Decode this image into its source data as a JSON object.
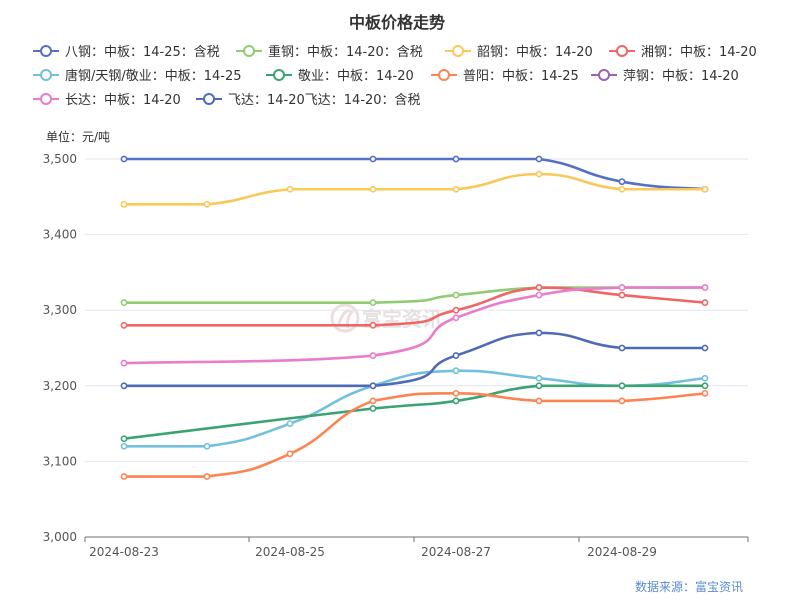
{
  "chart_data": {
    "type": "line",
    "title": "中板价格走势",
    "unit_label": "单位：元/吨",
    "source": "数据来源：富宝资讯",
    "watermark": "富宝资讯",
    "x_ticks": [
      "2024-08-23",
      "2024-08-25",
      "2024-08-27",
      "2024-08-29"
    ],
    "x": [
      "2024-08-23",
      "2024-08-24",
      "2024-08-25",
      "2024-08-26",
      "2024-08-27",
      "2024-08-28",
      "2024-08-29",
      "2024-08-30"
    ],
    "ylim": [
      3000,
      3500
    ],
    "y_ticks": [
      "3,000",
      "3,100",
      "3,200",
      "3,300",
      "3,400",
      "3,500"
    ],
    "grid": true,
    "legend_position": "top",
    "series": [
      {
        "name": "八钢：中板：14-25：含税",
        "color": "#5470c6",
        "points": [
          [
            "2024-08-23",
            3500
          ],
          [
            "2024-08-26",
            3500
          ],
          [
            "2024-08-27",
            3500
          ],
          [
            "2024-08-28",
            3500
          ],
          [
            "2024-08-29",
            3470
          ],
          [
            "2024-08-30",
            3460
          ]
        ]
      },
      {
        "name": "重钢：中板：14-20：含税",
        "color": "#91cc75",
        "points": [
          [
            "2024-08-23",
            3310
          ],
          [
            "2024-08-26",
            3310
          ],
          [
            "2024-08-27",
            3320
          ],
          [
            "2024-08-28",
            3330
          ],
          [
            "2024-08-29",
            3330
          ],
          [
            "2024-08-30",
            3330
          ]
        ]
      },
      {
        "name": "韶钢：中板：14-20",
        "color": "#fac858",
        "points": [
          [
            "2024-08-23",
            3440
          ],
          [
            "2024-08-24",
            3440
          ],
          [
            "2024-08-25",
            3460
          ],
          [
            "2024-08-26",
            3460
          ],
          [
            "2024-08-27",
            3460
          ],
          [
            "2024-08-28",
            3480
          ],
          [
            "2024-08-29",
            3460
          ],
          [
            "2024-08-30",
            3460
          ]
        ]
      },
      {
        "name": "湘钢：中板：14-20",
        "color": "#ee6666",
        "points": [
          [
            "2024-08-23",
            3280
          ],
          [
            "2024-08-26",
            3280
          ],
          [
            "2024-08-27",
            3300
          ],
          [
            "2024-08-28",
            3330
          ],
          [
            "2024-08-29",
            3320
          ],
          [
            "2024-08-30",
            3310
          ]
        ]
      },
      {
        "name": "唐钢/天钢/敬业：中板：14-25",
        "color": "#73c0de",
        "points": [
          [
            "2024-08-23",
            3120
          ],
          [
            "2024-08-24",
            3120
          ],
          [
            "2024-08-25",
            3150
          ],
          [
            "2024-08-26",
            3200
          ],
          [
            "2024-08-27",
            3220
          ],
          [
            "2024-08-28",
            3210
          ],
          [
            "2024-08-29",
            3200
          ],
          [
            "2024-08-30",
            3210
          ]
        ]
      },
      {
        "name": "敬业：中板：14-20",
        "color": "#3ba272",
        "points": [
          [
            "2024-08-23",
            3130
          ],
          [
            "2024-08-26",
            3170
          ],
          [
            "2024-08-27",
            3180
          ],
          [
            "2024-08-28",
            3200
          ],
          [
            "2024-08-29",
            3200
          ],
          [
            "2024-08-30",
            3200
          ]
        ]
      },
      {
        "name": "普阳：中板：14-25",
        "color": "#fc8452",
        "points": [
          [
            "2024-08-23",
            3080
          ],
          [
            "2024-08-24",
            3080
          ],
          [
            "2024-08-25",
            3110
          ],
          [
            "2024-08-26",
            3180
          ],
          [
            "2024-08-27",
            3190
          ],
          [
            "2024-08-28",
            3180
          ],
          [
            "2024-08-29",
            3180
          ],
          [
            "2024-08-30",
            3190
          ]
        ]
      },
      {
        "name": "萍钢：中板：14-20",
        "color": "#9a60b4",
        "points": []
      },
      {
        "name": "长达：中板：14-20",
        "color": "#ea7ccc",
        "points": [
          [
            "2024-08-23",
            3230
          ],
          [
            "2024-08-26",
            3240
          ],
          [
            "2024-08-27",
            3290
          ],
          [
            "2024-08-28",
            3320
          ],
          [
            "2024-08-29",
            3330
          ],
          [
            "2024-08-30",
            3330
          ]
        ]
      },
      {
        "name": "飞达：14-20飞达：14-20：含税",
        "color": "#4e6ab8",
        "points": [
          [
            "2024-08-23",
            3200
          ],
          [
            "2024-08-26",
            3200
          ],
          [
            "2024-08-27",
            3240
          ],
          [
            "2024-08-28",
            3270
          ],
          [
            "2024-08-29",
            3250
          ],
          [
            "2024-08-30",
            3250
          ]
        ]
      }
    ]
  }
}
